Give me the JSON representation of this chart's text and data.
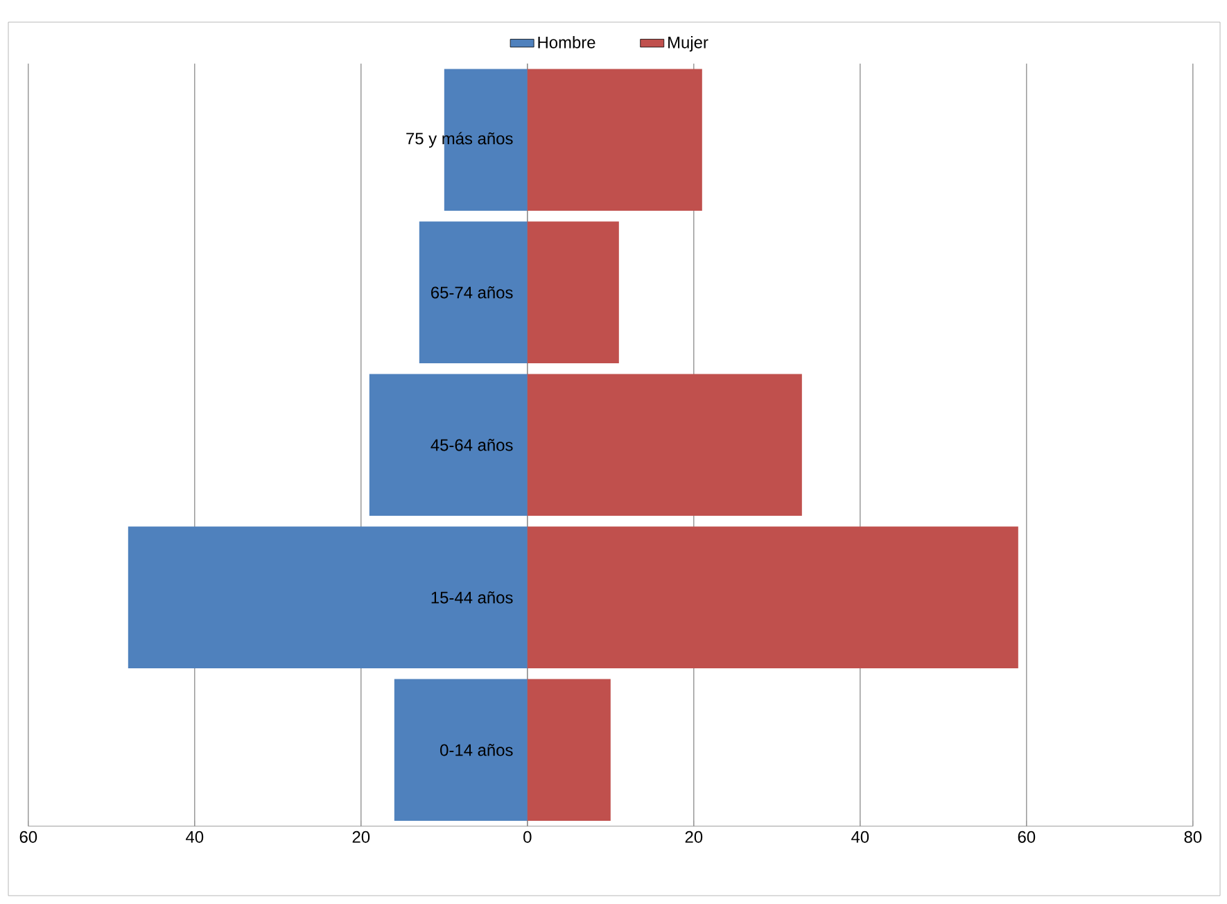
{
  "chart_data": {
    "type": "bar",
    "orientation": "horizontal",
    "categories": [
      "75 y más años",
      "65-74 años",
      "45-64 años",
      "15-44 años",
      "0-14 años"
    ],
    "series": [
      {
        "name": "Hombre",
        "color": "#4f81bd",
        "values": [
          -10,
          -13,
          -19,
          -48,
          -16
        ]
      },
      {
        "name": "Mujer",
        "color": "#c0504d",
        "values": [
          21,
          11,
          33,
          59,
          10
        ]
      }
    ],
    "xlim": [
      -60,
      80
    ],
    "xticks": [
      {
        "value": -60,
        "label": "60"
      },
      {
        "value": -40,
        "label": "40"
      },
      {
        "value": -20,
        "label": "20"
      },
      0,
      20,
      40,
      60,
      80
    ],
    "grid": "x",
    "legend": "top",
    "stacked": true
  }
}
